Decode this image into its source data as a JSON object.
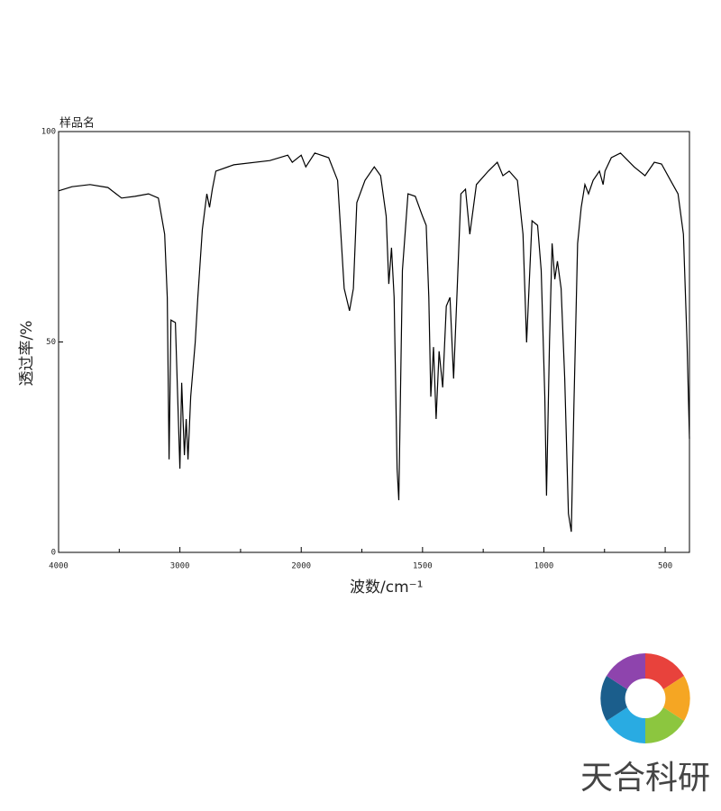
{
  "chart_data": {
    "type": "line",
    "title": "样品名",
    "x_label": "波数/cm⁻¹",
    "y_label": "透过率/%",
    "x": [
      4000,
      3889,
      3741,
      3593,
      3481,
      3370,
      3259,
      3178,
      3126,
      3104,
      3089,
      3074,
      3037,
      3015,
      3000,
      2985,
      2963,
      2948,
      2933,
      2911,
      2874,
      2852,
      2815,
      2778,
      2756,
      2733,
      2704,
      2556,
      2259,
      2111,
      2074,
      2000,
      1981,
      1944,
      1887,
      1850,
      1823,
      1801,
      1785,
      1771,
      1737,
      1699,
      1673,
      1650,
      1639,
      1628,
      1617,
      1605,
      1598,
      1583,
      1560,
      1530,
      1500,
      1485,
      1474,
      1466,
      1455,
      1444,
      1432,
      1417,
      1402,
      1387,
      1372,
      1357,
      1342,
      1323,
      1305,
      1278,
      1229,
      1192,
      1169,
      1143,
      1109,
      1086,
      1071,
      1049,
      1026,
      1011,
      996,
      989,
      977,
      966,
      955,
      944,
      929,
      914,
      899,
      887,
      876,
      861,
      846,
      831,
      816,
      797,
      771,
      756,
      748,
      722,
      684,
      628,
      583,
      545,
      515,
      478,
      447,
      425,
      410,
      400
    ],
    "values": [
      85.9,
      86.9,
      87.4,
      86.7,
      84.2,
      84.6,
      85.2,
      84.2,
      75.6,
      60.6,
      22.1,
      55.2,
      54.6,
      33.8,
      19.9,
      40.3,
      23.1,
      31.7,
      22.1,
      37,
      49.9,
      60.6,
      76.7,
      85.2,
      82,
      86.3,
      90.6,
      92.1,
      93.1,
      94.4,
      92.7,
      94.4,
      91.6,
      94.9,
      93.8,
      88.4,
      62.7,
      57.4,
      62.7,
      83.1,
      88.4,
      91.6,
      89.5,
      79.9,
      63.8,
      72.4,
      60.6,
      19.9,
      12.4,
      67,
      85.2,
      84.6,
      79.9,
      77.7,
      60.6,
      37,
      48.8,
      31.7,
      47.8,
      39.2,
      58.5,
      60.6,
      41.3,
      62.7,
      85.2,
      86.3,
      75.6,
      87.4,
      90.6,
      92.7,
      89.5,
      90.6,
      88.4,
      75.6,
      49.9,
      78.8,
      77.7,
      67,
      37,
      13.5,
      49.9,
      73.4,
      64.9,
      69.2,
      62.7,
      41.3,
      9.2,
      4.9,
      34.9,
      73.4,
      82,
      87.4,
      85.2,
      88.4,
      90.6,
      87.4,
      90.6,
      93.8,
      94.9,
      91.6,
      89.5,
      92.7,
      92.3,
      88.4,
      85.2,
      75.6,
      50,
      27
    ],
    "color": "#000000",
    "xlim": [
      4000,
      400
    ],
    "ylim": [
      0,
      100
    ],
    "xticks": [
      4000,
      3000,
      2000,
      1500,
      1000,
      500
    ],
    "xminorticks": [
      3500,
      2500,
      1750,
      1250,
      750
    ],
    "yticks": [
      0,
      50,
      100
    ],
    "x_scale_break": 2000
  },
  "logo_text": "天合科研"
}
